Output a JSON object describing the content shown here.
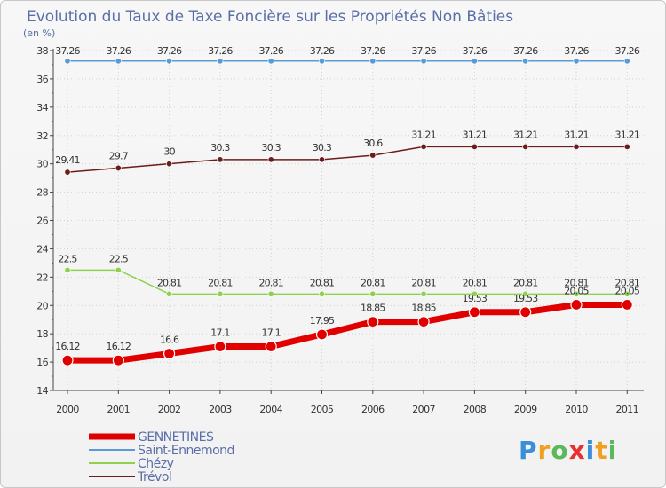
{
  "chart_data": {
    "type": "line",
    "title": "Evolution du Taux de Taxe Foncière sur les Propriétés Non Bâties",
    "ylabel": "(en %)",
    "xlabel": "",
    "ylim": [
      14,
      38
    ],
    "yticks": [
      14,
      16,
      18,
      20,
      22,
      24,
      26,
      28,
      30,
      32,
      34,
      36,
      38
    ],
    "categories": [
      "2000",
      "2001",
      "2002",
      "2003",
      "2004",
      "2005",
      "2006",
      "2007",
      "2008",
      "2009",
      "2010",
      "2011"
    ],
    "series": [
      {
        "name": "Trévol",
        "color": "#6b1c1c",
        "values": [
          29.41,
          29.7,
          30,
          30.3,
          30.3,
          30.3,
          30.6,
          31.21,
          31.21,
          31.21,
          31.21,
          31.21
        ],
        "labels": [
          "29.41",
          "29.7",
          "30",
          "30.3",
          "30.3",
          "30.3",
          "30.6",
          "31.21",
          "31.21",
          "31.21",
          "31.21",
          "31.21"
        ]
      },
      {
        "name": "Chézy",
        "color": "#8fd14f",
        "values": [
          22.5,
          22.5,
          20.81,
          20.81,
          20.81,
          20.81,
          20.81,
          20.81,
          20.81,
          20.81,
          20.81,
          20.81
        ],
        "labels": [
          "22.5",
          "22.5",
          "20.81",
          "20.81",
          "20.81",
          "20.81",
          "20.81",
          "20.81",
          "20.81",
          "20.81",
          "20.81",
          "20.81"
        ]
      },
      {
        "name": "Saint-Ennemond",
        "color": "#5b9bd5",
        "values": [
          37.26,
          37.26,
          37.26,
          37.26,
          37.26,
          37.26,
          37.26,
          37.26,
          37.26,
          37.26,
          37.26,
          37.26
        ],
        "labels": [
          "37.26",
          "37.26",
          "37.26",
          "37.26",
          "37.26",
          "37.26",
          "37.26",
          "37.26",
          "37.26",
          "37.26",
          "37.26",
          "37.26"
        ]
      },
      {
        "name": "GENNETINES",
        "color": "#e00000",
        "values": [
          16.12,
          16.12,
          16.6,
          17.1,
          17.1,
          17.95,
          18.85,
          18.85,
          19.53,
          19.53,
          20.05,
          20.05
        ],
        "labels": [
          "16.12",
          "16.12",
          "16.6",
          "17.1",
          "17.1",
          "17.95",
          "18.85",
          "18.85",
          "19.53",
          "19.53",
          "20.05",
          "20.05"
        ]
      }
    ],
    "legend": [
      "GENNETINES",
      "Saint-Ennemond",
      "Chézy",
      "Trévol"
    ],
    "legend_position": "bottom-left"
  },
  "branding": {
    "logo_text": "Proxiti"
  }
}
